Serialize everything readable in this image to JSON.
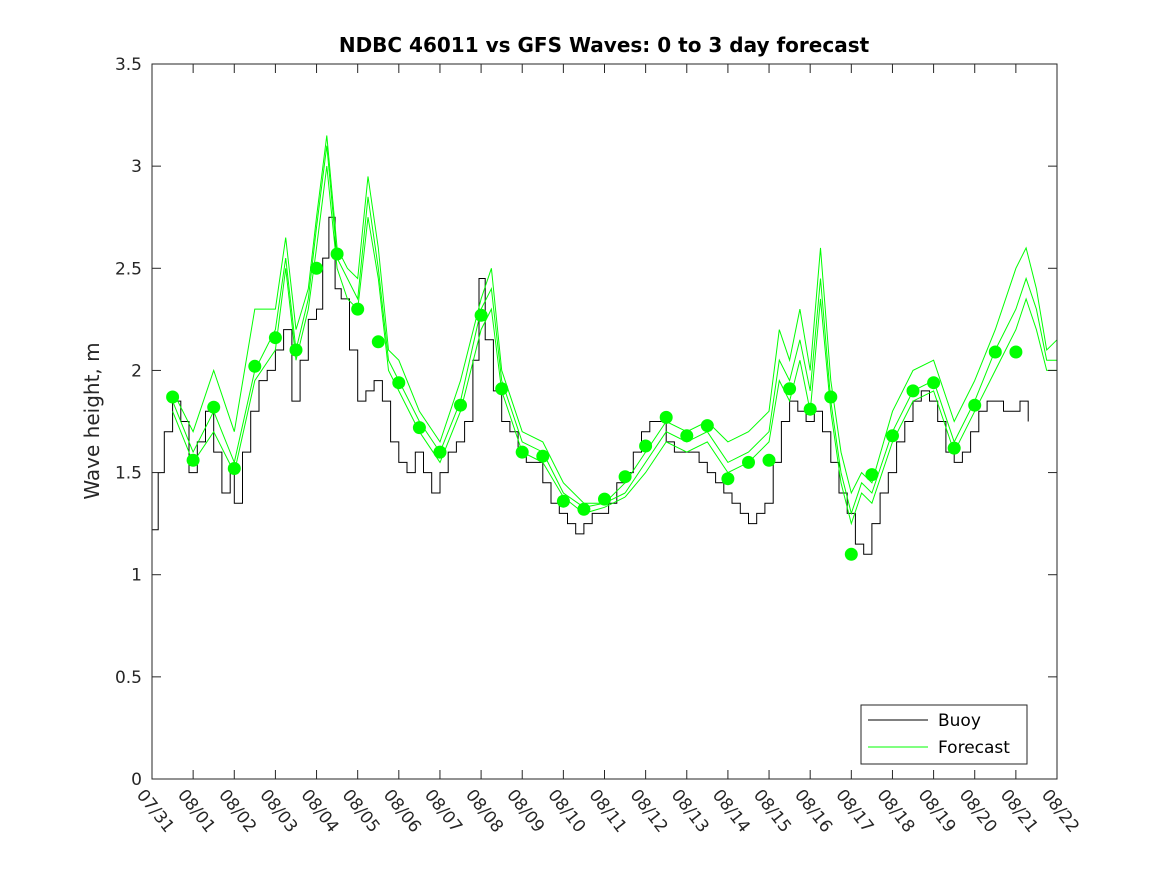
{
  "chart_data": {
    "type": "line",
    "title": "NDBC 46011 vs GFS Waves: 0 to 3 day forecast",
    "xlabel": "",
    "ylabel": "Wave height, m",
    "ylim": [
      0,
      3.5
    ],
    "yticks": [
      0,
      0.5,
      1,
      1.5,
      2,
      2.5,
      3,
      3.5
    ],
    "ytick_labels": [
      "0",
      "0.5",
      "1",
      "1.5",
      "2",
      "2.5",
      "3",
      "3.5"
    ],
    "xlim_days": [
      0,
      22
    ],
    "xtick_labels": [
      "07/31",
      "08/01",
      "08/02",
      "08/03",
      "08/04",
      "08/05",
      "08/06",
      "08/07",
      "08/08",
      "08/09",
      "08/10",
      "08/11",
      "08/12",
      "08/13",
      "08/14",
      "08/15",
      "08/16",
      "08/17",
      "08/18",
      "08/19",
      "08/20",
      "08/21",
      "08/22"
    ],
    "legend": {
      "position": "bottom-right",
      "entries": [
        "Buoy",
        "Forecast"
      ]
    },
    "colors": {
      "buoy": "#000000",
      "forecast": "#00ff00",
      "axis": "#262626"
    },
    "buoy": {
      "name": "Buoy",
      "x": [
        0,
        0.15,
        0.3,
        0.5,
        0.7,
        0.9,
        1.1,
        1.3,
        1.5,
        1.7,
        1.9,
        2.0,
        2.2,
        2.4,
        2.6,
        2.8,
        3.0,
        3.2,
        3.4,
        3.6,
        3.8,
        4.0,
        4.15,
        4.3,
        4.45,
        4.6,
        4.8,
        5.0,
        5.2,
        5.4,
        5.6,
        5.8,
        6.0,
        6.2,
        6.4,
        6.6,
        6.8,
        7.0,
        7.2,
        7.4,
        7.6,
        7.8,
        7.95,
        8.1,
        8.3,
        8.5,
        8.7,
        8.9,
        9.1,
        9.3,
        9.5,
        9.7,
        9.9,
        10.1,
        10.3,
        10.5,
        10.7,
        10.9,
        11.1,
        11.3,
        11.5,
        11.7,
        11.9,
        12.1,
        12.3,
        12.5,
        12.7,
        12.9,
        13.1,
        13.3,
        13.5,
        13.7,
        13.9,
        14.1,
        14.3,
        14.5,
        14.7,
        14.9,
        15.1,
        15.3,
        15.5,
        15.7,
        15.9,
        16.1,
        16.3,
        16.5,
        16.7,
        16.9,
        17.1,
        17.3,
        17.5,
        17.7,
        17.9,
        18.1,
        18.3,
        18.5,
        18.7,
        18.9,
        19.1,
        19.3,
        19.5,
        19.7,
        19.9,
        20.1,
        20.3,
        20.5,
        20.7,
        20.9,
        21.1,
        21.3
      ],
      "y": [
        1.22,
        1.5,
        1.7,
        1.85,
        1.75,
        1.5,
        1.65,
        1.8,
        1.6,
        1.4,
        1.5,
        1.35,
        1.6,
        1.8,
        1.95,
        2.0,
        2.1,
        2.2,
        1.85,
        2.05,
        2.25,
        2.3,
        2.55,
        2.75,
        2.4,
        2.35,
        2.1,
        1.85,
        1.9,
        1.95,
        1.85,
        1.65,
        1.55,
        1.5,
        1.6,
        1.5,
        1.4,
        1.5,
        1.6,
        1.65,
        1.75,
        2.05,
        2.45,
        2.15,
        1.9,
        1.75,
        1.7,
        1.6,
        1.55,
        1.55,
        1.45,
        1.35,
        1.3,
        1.25,
        1.2,
        1.25,
        1.3,
        1.3,
        1.35,
        1.45,
        1.5,
        1.6,
        1.7,
        1.75,
        1.75,
        1.65,
        1.6,
        1.6,
        1.6,
        1.55,
        1.5,
        1.45,
        1.4,
        1.35,
        1.3,
        1.25,
        1.3,
        1.35,
        1.55,
        1.75,
        1.85,
        1.8,
        1.75,
        1.8,
        1.7,
        1.55,
        1.4,
        1.3,
        1.15,
        1.1,
        1.25,
        1.4,
        1.5,
        1.65,
        1.75,
        1.85,
        1.9,
        1.85,
        1.75,
        1.6,
        1.55,
        1.6,
        1.7,
        1.8,
        1.85,
        1.85,
        1.8,
        1.8,
        1.85,
        1.75
      ]
    },
    "forecast": [
      {
        "name": "Forecast",
        "x": [
          0.5,
          1.0,
          1.5,
          2.0,
          2.5,
          3.0,
          3.25,
          3.5,
          3.8,
          4.0,
          4.25,
          4.5,
          4.75,
          5.0,
          5.25,
          5.5,
          5.75,
          6.0,
          6.5,
          7.0,
          7.5,
          8.0,
          8.25,
          8.5,
          9.0,
          9.5,
          10.0,
          10.5,
          11.0,
          11.5
        ],
        "y": [
          1.85,
          1.6,
          1.8,
          1.55,
          2.0,
          2.2,
          2.55,
          2.1,
          2.35,
          2.7,
          3.1,
          2.55,
          2.45,
          2.35,
          2.85,
          2.5,
          2.05,
          1.95,
          1.75,
          1.6,
          1.85,
          2.3,
          2.4,
          1.95,
          1.65,
          1.6,
          1.4,
          1.33,
          1.35,
          1.4
        ]
      },
      {
        "name": "Forecast",
        "x": [
          0.5,
          1.0,
          1.5,
          2.0,
          2.5,
          3.0,
          3.25,
          3.5,
          3.8,
          4.0,
          4.25,
          4.5,
          4.75,
          5.0,
          5.25,
          5.5,
          5.75,
          6.0,
          6.5,
          7.0,
          7.5,
          8.0,
          8.25,
          8.5,
          9.0,
          9.5,
          10.0,
          10.5,
          11.0,
          11.5
        ],
        "y": [
          1.9,
          1.7,
          2.0,
          1.7,
          2.3,
          2.3,
          2.65,
          2.2,
          2.4,
          2.75,
          3.15,
          2.6,
          2.5,
          2.45,
          2.95,
          2.6,
          2.1,
          2.05,
          1.8,
          1.65,
          1.95,
          2.35,
          2.5,
          2.0,
          1.7,
          1.65,
          1.45,
          1.35,
          1.35,
          1.45
        ]
      },
      {
        "name": "Forecast",
        "x": [
          0.5,
          1.0,
          1.5,
          2.0,
          2.5,
          3.0,
          3.25,
          3.5,
          3.8,
          4.0,
          4.25,
          4.5,
          4.75,
          5.0,
          5.25,
          5.5,
          5.75,
          6.0,
          6.5,
          7.0,
          7.5,
          8.0,
          8.25,
          8.5,
          9.0,
          9.5,
          10.0,
          10.5,
          11.0,
          11.5
        ],
        "y": [
          1.8,
          1.55,
          1.7,
          1.5,
          1.95,
          2.1,
          2.5,
          2.05,
          2.3,
          2.6,
          3.0,
          2.5,
          2.35,
          2.3,
          2.75,
          2.45,
          2.0,
          1.9,
          1.7,
          1.55,
          1.8,
          2.2,
          2.3,
          1.9,
          1.6,
          1.55,
          1.38,
          1.3,
          1.33,
          1.38
        ]
      },
      {
        "name": "Forecast",
        "x": [
          11.5,
          12.0,
          12.5,
          13.0,
          13.5,
          14.0,
          14.5,
          15.0,
          15.25,
          15.5,
          15.75,
          16.0,
          16.25,
          16.5,
          16.75,
          17.0,
          17.25,
          17.5,
          18.0,
          18.5,
          19.0,
          19.5,
          20.0,
          20.5,
          21.0,
          21.25,
          21.5,
          21.75,
          22.0
        ],
        "y": [
          1.4,
          1.55,
          1.7,
          1.65,
          1.7,
          1.55,
          1.6,
          1.7,
          2.05,
          1.95,
          2.15,
          1.9,
          2.45,
          1.85,
          1.5,
          1.3,
          1.45,
          1.4,
          1.7,
          1.9,
          1.95,
          1.65,
          1.85,
          2.1,
          2.3,
          2.45,
          2.3,
          2.05,
          2.05
        ]
      },
      {
        "name": "Forecast",
        "x": [
          11.5,
          12.0,
          12.5,
          13.0,
          13.5,
          14.0,
          14.5,
          15.0,
          15.25,
          15.5,
          15.75,
          16.0,
          16.25,
          16.5,
          16.75,
          17.0,
          17.25,
          17.5,
          18.0,
          18.5,
          19.0,
          19.5,
          20.0,
          20.5,
          21.0,
          21.25,
          21.5,
          21.75,
          22.0
        ],
        "y": [
          1.45,
          1.6,
          1.75,
          1.7,
          1.75,
          1.65,
          1.7,
          1.8,
          2.2,
          2.05,
          2.3,
          2.0,
          2.6,
          1.95,
          1.6,
          1.4,
          1.5,
          1.45,
          1.8,
          2.0,
          2.05,
          1.75,
          1.95,
          2.2,
          2.5,
          2.6,
          2.4,
          2.1,
          2.15
        ]
      },
      {
        "name": "Forecast",
        "x": [
          11.5,
          12.0,
          12.5,
          13.0,
          13.5,
          14.0,
          14.5,
          15.0,
          15.25,
          15.5,
          15.75,
          16.0,
          16.25,
          16.5,
          16.75,
          17.0,
          17.25,
          17.5,
          18.0,
          18.5,
          19.0,
          19.5,
          20.0,
          20.5,
          21.0,
          21.25,
          21.5,
          21.75,
          22.0
        ],
        "y": [
          1.38,
          1.5,
          1.65,
          1.6,
          1.65,
          1.5,
          1.55,
          1.65,
          1.95,
          1.85,
          2.05,
          1.8,
          2.35,
          1.8,
          1.45,
          1.25,
          1.4,
          1.35,
          1.65,
          1.85,
          1.9,
          1.6,
          1.8,
          2.0,
          2.2,
          2.35,
          2.2,
          2.0,
          2.0
        ]
      }
    ],
    "forecast_points": {
      "name": "Forecast",
      "x": [
        0.5,
        1.0,
        1.5,
        2.0,
        2.5,
        3.0,
        3.5,
        4.0,
        4.5,
        5.0,
        5.5,
        6.0,
        6.5,
        7.0,
        7.5,
        8.0,
        8.5,
        9.0,
        9.5,
        10.0,
        10.5,
        11.0,
        11.5,
        12.0,
        12.5,
        13.0,
        13.5,
        14.0,
        14.5,
        15.0,
        15.5,
        16.0,
        16.5,
        17.0,
        17.5,
        18.0,
        18.5,
        19.0,
        19.5,
        20.0,
        20.5,
        21.0
      ],
      "y": [
        1.87,
        1.56,
        1.82,
        1.52,
        2.02,
        2.16,
        2.1,
        2.5,
        2.57,
        2.3,
        2.14,
        1.94,
        1.72,
        1.6,
        1.83,
        2.27,
        1.91,
        1.6,
        1.58,
        1.36,
        1.32,
        1.37,
        1.48,
        1.63,
        1.77,
        1.68,
        1.73,
        1.47,
        1.55,
        1.56,
        1.91,
        1.81,
        1.87,
        1.1,
        1.49,
        1.68,
        1.9,
        1.94,
        1.62,
        1.83,
        2.09,
        2.09
      ]
    }
  }
}
